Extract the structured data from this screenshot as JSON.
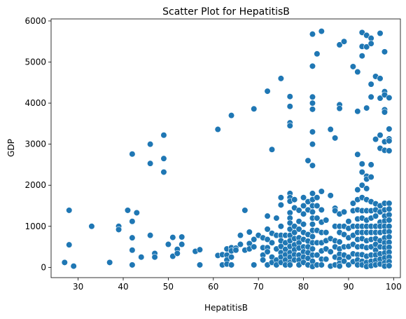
{
  "chart_data": {
    "type": "scatter",
    "title": "Scatter Plot for HepatitisB",
    "xlabel": "HepatitisB",
    "ylabel": "GDP",
    "xlim": [
      24,
      101.5
    ],
    "ylim": [
      -250,
      6050
    ],
    "xticks": [
      30,
      40,
      50,
      60,
      70,
      80,
      90,
      100
    ],
    "yticks": [
      0,
      1000,
      2000,
      3000,
      4000,
      5000,
      6000
    ],
    "grid": false,
    "legend": "none",
    "marker_color": "#1f77b4",
    "points": [
      [
        27,
        120
      ],
      [
        28,
        1390
      ],
      [
        28,
        550
      ],
      [
        29,
        30
      ],
      [
        33,
        1000
      ],
      [
        37,
        120
      ],
      [
        39,
        1000
      ],
      [
        39,
        920
      ],
      [
        41,
        1390
      ],
      [
        42,
        2760
      ],
      [
        42,
        1120
      ],
      [
        42,
        720
      ],
      [
        42,
        420
      ],
      [
        42,
        60
      ],
      [
        43,
        1330
      ],
      [
        44,
        250
      ],
      [
        46,
        3000
      ],
      [
        46,
        2530
      ],
      [
        46,
        780
      ],
      [
        47,
        340
      ],
      [
        47,
        250
      ],
      [
        49,
        3220
      ],
      [
        49,
        2650
      ],
      [
        49,
        2320
      ],
      [
        50,
        560
      ],
      [
        51,
        270
      ],
      [
        51,
        730
      ],
      [
        52,
        440
      ],
      [
        52,
        340
      ],
      [
        53,
        740
      ],
      [
        53,
        560
      ],
      [
        56,
        390
      ],
      [
        57,
        430
      ],
      [
        57,
        60
      ],
      [
        61,
        3360
      ],
      [
        61,
        290
      ],
      [
        62,
        310
      ],
      [
        62,
        60
      ],
      [
        63,
        450
      ],
      [
        63,
        300
      ],
      [
        63,
        180
      ],
      [
        63,
        80
      ],
      [
        64,
        3700
      ],
      [
        64,
        480
      ],
      [
        64,
        400
      ],
      [
        64,
        250
      ],
      [
        64,
        60
      ],
      [
        65,
        470
      ],
      [
        65,
        420
      ],
      [
        66,
        780
      ],
      [
        66,
        560
      ],
      [
        67,
        1390
      ],
      [
        67,
        420
      ],
      [
        68,
        860
      ],
      [
        68,
        580
      ],
      [
        68,
        450
      ],
      [
        69,
        3860
      ],
      [
        69,
        680
      ],
      [
        69,
        60
      ],
      [
        69,
        500
      ],
      [
        70,
        780
      ],
      [
        71,
        480
      ],
      [
        71,
        300
      ],
      [
        71,
        720
      ],
      [
        71,
        180
      ],
      [
        72,
        4290
      ],
      [
        72,
        1250
      ],
      [
        72,
        930
      ],
      [
        72,
        680
      ],
      [
        72,
        480
      ],
      [
        72,
        380
      ],
      [
        72,
        60
      ],
      [
        73,
        2870
      ],
      [
        73,
        830
      ],
      [
        73,
        600
      ],
      [
        73,
        250
      ],
      [
        73,
        120
      ],
      [
        74,
        1200
      ],
      [
        74,
        780
      ],
      [
        74,
        450
      ],
      [
        74,
        180
      ],
      [
        74,
        60
      ],
      [
        75,
        4600
      ],
      [
        75,
        1700
      ],
      [
        75,
        1520
      ],
      [
        75,
        1000
      ],
      [
        75,
        780
      ],
      [
        75,
        650
      ],
      [
        75,
        510
      ],
      [
        75,
        360
      ],
      [
        75,
        250
      ],
      [
        75,
        120
      ],
      [
        76,
        780
      ],
      [
        76,
        600
      ],
      [
        76,
        440
      ],
      [
        76,
        310
      ],
      [
        76,
        180
      ],
      [
        76,
        60
      ],
      [
        77,
        4160
      ],
      [
        77,
        3920
      ],
      [
        77,
        3520
      ],
      [
        77,
        3450
      ],
      [
        77,
        1800
      ],
      [
        77,
        1700
      ],
      [
        77,
        1610
      ],
      [
        77,
        1330
      ],
      [
        77,
        1200
      ],
      [
        77,
        1080
      ],
      [
        77,
        930
      ],
      [
        77,
        780
      ],
      [
        77,
        650
      ],
      [
        77,
        510
      ],
      [
        77,
        360
      ],
      [
        77,
        250
      ],
      [
        77,
        120
      ],
      [
        77,
        60
      ],
      [
        78,
        1650
      ],
      [
        78,
        1450
      ],
      [
        78,
        1000
      ],
      [
        78,
        850
      ],
      [
        78,
        700
      ],
      [
        78,
        550
      ],
      [
        78,
        430
      ],
      [
        78,
        310
      ],
      [
        78,
        180
      ],
      [
        79,
        1390
      ],
      [
        79,
        1120
      ],
      [
        79,
        930
      ],
      [
        79,
        720
      ],
      [
        79,
        600
      ],
      [
        79,
        470
      ],
      [
        79,
        300
      ],
      [
        79,
        180
      ],
      [
        79,
        60
      ],
      [
        80,
        1700
      ],
      [
        80,
        1500
      ],
      [
        80,
        1300
      ],
      [
        80,
        1050
      ],
      [
        80,
        850
      ],
      [
        80,
        680
      ],
      [
        80,
        500
      ],
      [
        80,
        380
      ],
      [
        80,
        250
      ],
      [
        80,
        120
      ],
      [
        81,
        2600
      ],
      [
        81,
        1600
      ],
      [
        81,
        1400
      ],
      [
        81,
        800
      ],
      [
        81,
        640
      ],
      [
        81,
        500
      ],
      [
        81,
        360
      ],
      [
        81,
        220
      ],
      [
        81,
        60
      ],
      [
        82,
        2480
      ],
      [
        82,
        3300
      ],
      [
        82,
        3000
      ],
      [
        82,
        3850
      ],
      [
        82,
        4000
      ],
      [
        82,
        4150
      ],
      [
        82,
        4900
      ],
      [
        82,
        5680
      ],
      [
        82,
        1800
      ],
      [
        82,
        1650
      ],
      [
        82,
        1500
      ],
      [
        82,
        1350
      ],
      [
        82,
        1200
      ],
      [
        82,
        1050
      ],
      [
        82,
        900
      ],
      [
        82,
        750
      ],
      [
        82,
        600
      ],
      [
        82,
        450
      ],
      [
        82,
        300
      ],
      [
        82,
        150
      ],
      [
        82,
        20
      ],
      [
        83,
        5200
      ],
      [
        83,
        1700
      ],
      [
        83,
        1500
      ],
      [
        83,
        1200
      ],
      [
        83,
        900
      ],
      [
        83,
        600
      ],
      [
        83,
        300
      ],
      [
        83,
        60
      ],
      [
        84,
        5750
      ],
      [
        84,
        1850
      ],
      [
        84,
        1400
      ],
      [
        84,
        1100
      ],
      [
        84,
        850
      ],
      [
        84,
        600
      ],
      [
        84,
        400
      ],
      [
        84,
        200
      ],
      [
        84,
        60
      ],
      [
        85,
        1150
      ],
      [
        85,
        850
      ],
      [
        85,
        650
      ],
      [
        85,
        450
      ],
      [
        85,
        200
      ],
      [
        86,
        3360
      ],
      [
        86,
        1750
      ],
      [
        86,
        700
      ],
      [
        86,
        380
      ],
      [
        86,
        30
      ],
      [
        87,
        3150
      ],
      [
        87,
        1440
      ],
      [
        87,
        1380
      ],
      [
        87,
        1000
      ],
      [
        87,
        650
      ],
      [
        87,
        500
      ],
      [
        87,
        250
      ],
      [
        87,
        60
      ],
      [
        88,
        5420
      ],
      [
        88,
        3960
      ],
      [
        88,
        3870
      ],
      [
        88,
        1300
      ],
      [
        88,
        1000
      ],
      [
        88,
        850
      ],
      [
        88,
        620
      ],
      [
        88,
        450
      ],
      [
        88,
        320
      ],
      [
        88,
        200
      ],
      [
        88,
        100
      ],
      [
        88,
        30
      ],
      [
        89,
        5500
      ],
      [
        89,
        1350
      ],
      [
        89,
        1000
      ],
      [
        89,
        800
      ],
      [
        89,
        500
      ],
      [
        89,
        300
      ],
      [
        89,
        150
      ],
      [
        90,
        1120
      ],
      [
        90,
        950
      ],
      [
        90,
        720
      ],
      [
        90,
        510
      ],
      [
        90,
        250
      ],
      [
        90,
        60
      ],
      [
        91,
        4890
      ],
      [
        91,
        1560
      ],
      [
        91,
        1380
      ],
      [
        91,
        1000
      ],
      [
        91,
        780
      ],
      [
        91,
        560
      ],
      [
        91,
        330
      ],
      [
        91,
        140
      ],
      [
        92,
        4760
      ],
      [
        92,
        3800
      ],
      [
        92,
        2750
      ],
      [
        92,
        1890
      ],
      [
        92,
        1650
      ],
      [
        92,
        1400
      ],
      [
        92,
        1180
      ],
      [
        92,
        1000
      ],
      [
        92,
        850
      ],
      [
        92,
        680
      ],
      [
        92,
        500
      ],
      [
        92,
        310
      ],
      [
        92,
        180
      ],
      [
        92,
        60
      ],
      [
        93,
        5720
      ],
      [
        93,
        5380
      ],
      [
        93,
        5150
      ],
      [
        93,
        2520
      ],
      [
        93,
        2320
      ],
      [
        93,
        2000
      ],
      [
        93,
        1700
      ],
      [
        93,
        1380
      ],
      [
        93,
        1200
      ],
      [
        93,
        1000
      ],
      [
        93,
        850
      ],
      [
        93,
        700
      ],
      [
        93,
        510
      ],
      [
        93,
        310
      ],
      [
        93,
        150
      ],
      [
        93,
        60
      ],
      [
        94,
        5650
      ],
      [
        94,
        5370
      ],
      [
        94,
        3880
      ],
      [
        94,
        2220
      ],
      [
        94,
        2150
      ],
      [
        94,
        1920
      ],
      [
        94,
        1650
      ],
      [
        94,
        1380
      ],
      [
        94,
        1150
      ],
      [
        94,
        1000
      ],
      [
        94,
        850
      ],
      [
        94,
        650
      ],
      [
        94,
        480
      ],
      [
        94,
        270
      ],
      [
        94,
        120
      ],
      [
        94,
        20
      ],
      [
        95,
        5580
      ],
      [
        95,
        5450
      ],
      [
        95,
        4460
      ],
      [
        95,
        4150
      ],
      [
        95,
        2500
      ],
      [
        95,
        2200
      ],
      [
        95,
        1600
      ],
      [
        95,
        1380
      ],
      [
        95,
        1200
      ],
      [
        95,
        1000
      ],
      [
        95,
        850
      ],
      [
        95,
        680
      ],
      [
        95,
        500
      ],
      [
        95,
        300
      ],
      [
        95,
        150
      ],
      [
        95,
        40
      ],
      [
        96,
        4650
      ],
      [
        96,
        3120
      ],
      [
        96,
        1550
      ],
      [
        96,
        1400
      ],
      [
        96,
        1250
      ],
      [
        96,
        1000
      ],
      [
        96,
        850
      ],
      [
        96,
        700
      ],
      [
        96,
        560
      ],
      [
        96,
        420
      ],
      [
        96,
        300
      ],
      [
        96,
        170
      ],
      [
        96,
        60
      ],
      [
        97,
        5700
      ],
      [
        97,
        4600
      ],
      [
        97,
        4120
      ],
      [
        97,
        3220
      ],
      [
        97,
        2900
      ],
      [
        97,
        1500
      ],
      [
        97,
        1350
      ],
      [
        97,
        1100
      ],
      [
        97,
        1000
      ],
      [
        97,
        850
      ],
      [
        97,
        650
      ],
      [
        97,
        500
      ],
      [
        97,
        330
      ],
      [
        97,
        200
      ],
      [
        97,
        80
      ],
      [
        98,
        5250
      ],
      [
        98,
        4280
      ],
      [
        98,
        4200
      ],
      [
        98,
        3840
      ],
      [
        98,
        3780
      ],
      [
        98,
        3060
      ],
      [
        98,
        2850
      ],
      [
        98,
        1560
      ],
      [
        98,
        1400
      ],
      [
        98,
        1250
      ],
      [
        98,
        1130
      ],
      [
        98,
        1000
      ],
      [
        98,
        870
      ],
      [
        98,
        720
      ],
      [
        98,
        600
      ],
      [
        98,
        480
      ],
      [
        98,
        350
      ],
      [
        98,
        230
      ],
      [
        98,
        110
      ],
      [
        98,
        30
      ],
      [
        99,
        4130
      ],
      [
        99,
        3370
      ],
      [
        99,
        3130
      ],
      [
        99,
        3080
      ],
      [
        99,
        2840
      ],
      [
        99,
        1560
      ],
      [
        99,
        1420
      ],
      [
        99,
        1280
      ],
      [
        99,
        1150
      ],
      [
        99,
        1000
      ],
      [
        99,
        870
      ],
      [
        99,
        740
      ],
      [
        99,
        610
      ],
      [
        99,
        490
      ],
      [
        99,
        370
      ],
      [
        99,
        250
      ],
      [
        99,
        140
      ],
      [
        99,
        40
      ]
    ]
  }
}
